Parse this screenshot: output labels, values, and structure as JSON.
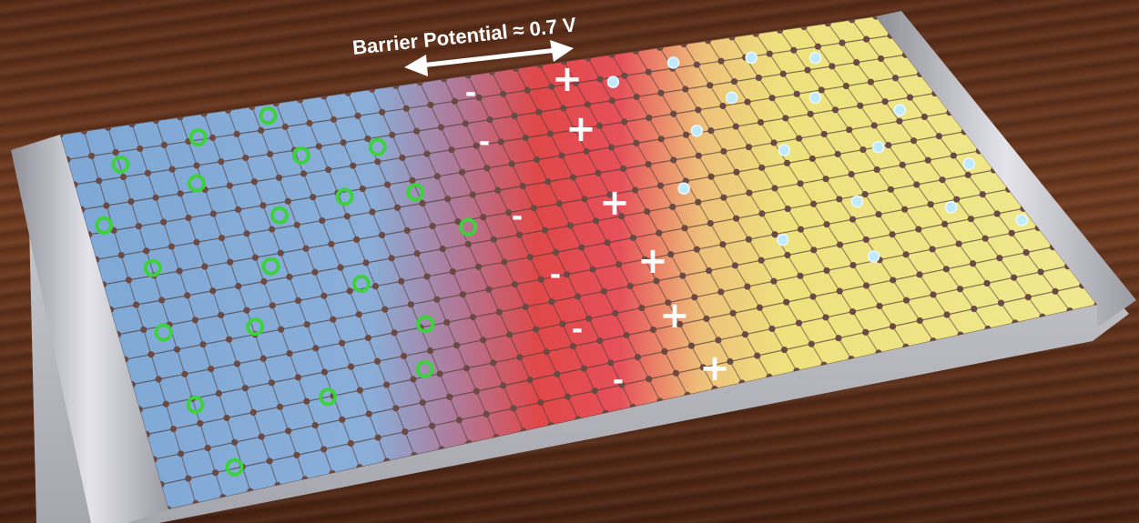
{
  "barrier": {
    "label": "Barrier Potential ≈ 0.7 V",
    "label_color": "#ffffff"
  },
  "regions": {
    "n_side_color": "#7fa8d6",
    "depletion_color": "#e04848",
    "p_side_color": "#eee27e"
  },
  "charges": {
    "negative_symbol": "-",
    "positive_symbol": "+",
    "negative_count": 6,
    "positive_count": 6
  },
  "carriers": {
    "electron_ring_color": "#3ed13e",
    "hole_color": "#bfeaff"
  },
  "colors": {
    "lattice_node": "#6b4a44",
    "lattice_line": "#4d3a36",
    "frame": "#c9c9cf"
  },
  "icons": {
    "arrow": "double-arrow-icon"
  }
}
